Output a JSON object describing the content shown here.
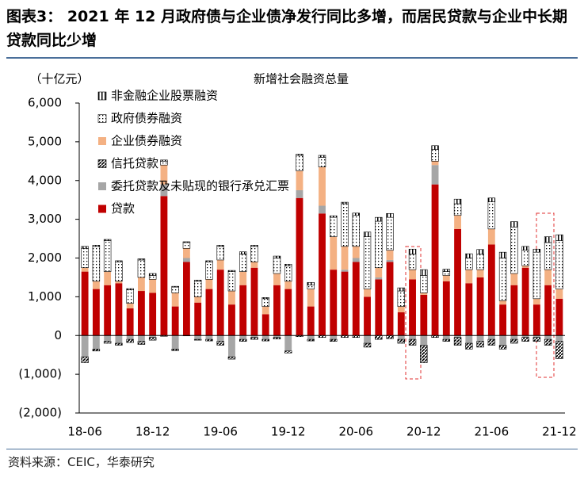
{
  "header": {
    "title": "图表3： 2021 年 12 月政府债与企业债净发行同比多增，而居民贷款与企业中长期贷款同比少增"
  },
  "chart_data": {
    "type": "stacked_bar",
    "title": "新增社会融资总量",
    "y_unit": "（十亿元）",
    "categories": [
      "18-06",
      null,
      null,
      null,
      null,
      null,
      "18-12",
      null,
      null,
      null,
      null,
      null,
      "19-06",
      null,
      null,
      null,
      null,
      null,
      "19-12",
      null,
      null,
      null,
      null,
      null,
      "20-06",
      null,
      null,
      null,
      null,
      null,
      "20-12",
      null,
      null,
      null,
      null,
      null,
      "21-06",
      null,
      null,
      null,
      null,
      null,
      "21-12"
    ],
    "series": [
      {
        "name": "贷款",
        "color": "#c00000",
        "pattern": "solid",
        "values": [
          1650,
          1200,
          1300,
          1350,
          700,
          1150,
          1100,
          3600,
          750,
          1900,
          850,
          1200,
          1700,
          800,
          1300,
          1750,
          550,
          1300,
          1200,
          3550,
          750,
          3150,
          1700,
          1650,
          1900,
          1000,
          1450,
          1900,
          600,
          1450,
          1050,
          3900,
          1400,
          2750,
          1350,
          1500,
          2350,
          800,
          1300,
          1750,
          800,
          1300,
          950
        ]
      },
      {
        "name": "委托贷款及未贴现的银行承兑汇票",
        "color": "#a6a6a6",
        "pattern": "solid",
        "values": [
          -550,
          -350,
          -150,
          -200,
          -100,
          -150,
          -50,
          300,
          -350,
          100,
          -100,
          -100,
          -150,
          -550,
          -100,
          -50,
          -100,
          -50,
          -400,
          200,
          -100,
          200,
          -100,
          50,
          100,
          -200,
          50,
          50,
          -100,
          -100,
          -250,
          500,
          -100,
          -50,
          -200,
          -150,
          -100,
          -250,
          -100,
          -50,
          -50,
          -100,
          -150
        ]
      },
      {
        "name": "信托贷款",
        "color": "#000000",
        "pattern": "diagonal",
        "values": [
          -150,
          -50,
          -50,
          -50,
          -80,
          -80,
          -70,
          -20,
          -40,
          -10,
          -20,
          -40,
          -100,
          -60,
          -50,
          -50,
          -40,
          -40,
          -50,
          -30,
          -40,
          -50,
          -50,
          -50,
          -50,
          -100,
          -100,
          -80,
          -100,
          -150,
          -450,
          -50,
          -50,
          -200,
          -150,
          -150,
          -150,
          -100,
          -100,
          -100,
          -100,
          -150,
          -450
        ]
      },
      {
        "name": "企业债券融资",
        "color": "#f4b183",
        "pattern": "solid",
        "values": [
          100,
          200,
          350,
          50,
          130,
          350,
          350,
          500,
          350,
          250,
          150,
          250,
          250,
          350,
          350,
          150,
          200,
          300,
          200,
          500,
          450,
          1000,
          850,
          600,
          300,
          200,
          250,
          250,
          150,
          250,
          50,
          100,
          150,
          350,
          350,
          200,
          400,
          100,
          300,
          50,
          150,
          400,
          250
        ]
      },
      {
        "name": "政府债券融资",
        "color": "#000000",
        "pattern": "dots",
        "values": [
          500,
          900,
          800,
          500,
          350,
          450,
          100,
          100,
          150,
          150,
          400,
          450,
          350,
          500,
          450,
          400,
          200,
          400,
          400,
          400,
          100,
          250,
          500,
          1100,
          800,
          1350,
          1200,
          850,
          400,
          400,
          450,
          300,
          100,
          300,
          300,
          400,
          700,
          1100,
          1200,
          400,
          1200,
          700,
          1250
        ]
      },
      {
        "name": "非金融企业股票融资",
        "color": "#000000",
        "pattern": "vstripes",
        "values": [
          50,
          30,
          30,
          30,
          30,
          30,
          50,
          30,
          20,
          20,
          30,
          30,
          30,
          30,
          60,
          30,
          30,
          50,
          40,
          30,
          70,
          50,
          40,
          40,
          60,
          120,
          100,
          100,
          80,
          130,
          150,
          100,
          60,
          120,
          110,
          120,
          100,
          150,
          140,
          100,
          80,
          150,
          150
        ]
      }
    ],
    "ylim": [
      -2000,
      6000
    ],
    "yticks": [
      {
        "value": -2000,
        "label": "(2,000)"
      },
      {
        "value": -1000,
        "label": "(1,000)"
      },
      0,
      {
        "value": 1000,
        "label": "1,000"
      },
      {
        "value": 2000,
        "label": "2,000"
      },
      {
        "value": 3000,
        "label": "3,000"
      },
      {
        "value": 4000,
        "label": "4,000"
      },
      {
        "value": 5000,
        "label": "5,000"
      },
      {
        "value": 6000,
        "label": "6,000"
      }
    ]
  },
  "footer": {
    "source": "资料来源：CEIC，华泰研究"
  }
}
